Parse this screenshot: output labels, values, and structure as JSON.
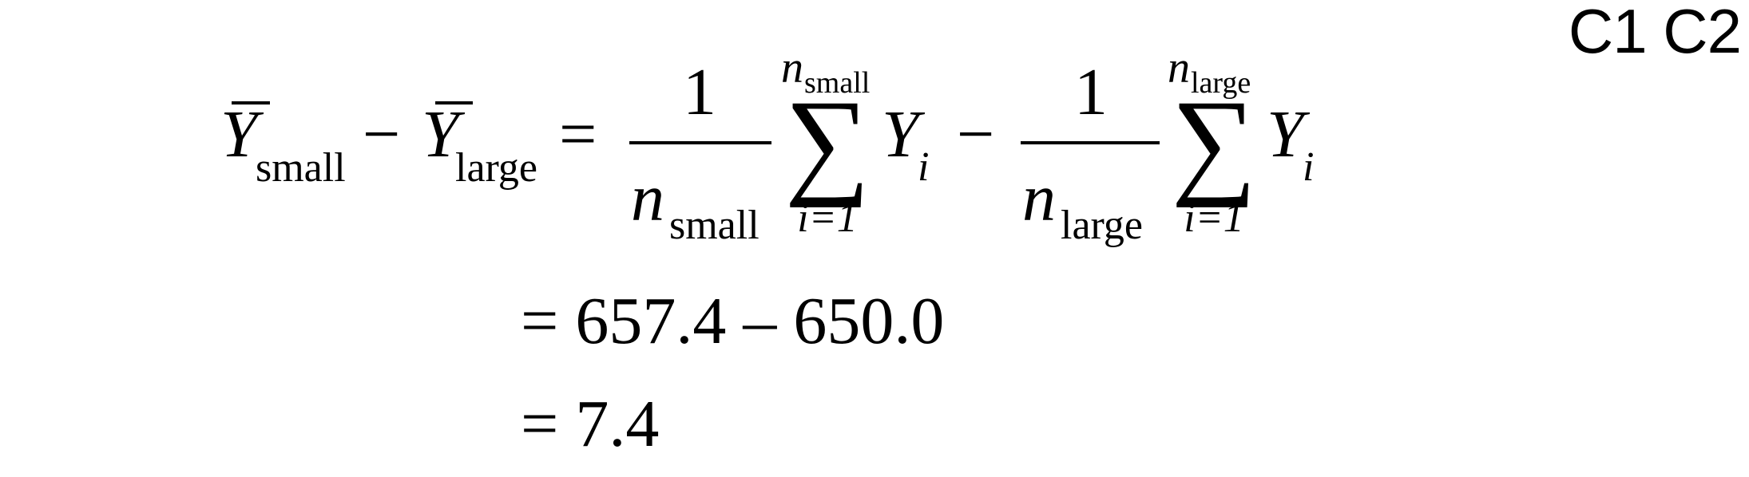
{
  "corner_label": "C1 C2",
  "equation": {
    "lhs": {
      "y_symbol": "Y",
      "sub_small": "small",
      "minus": "−",
      "sub_large": "large",
      "equals": "="
    },
    "term_small": {
      "numerator": "1",
      "denominator_symbol": "n",
      "denominator_sub": "small",
      "sum_symbol": "∑",
      "sum_upper_symbol": "n",
      "sum_upper_sub": "small",
      "sum_lower": "i=1",
      "summand_symbol": "Y",
      "summand_sub": "i"
    },
    "operator_minus": "−",
    "term_large": {
      "numerator": "1",
      "denominator_symbol": "n",
      "denominator_sub": "large",
      "sum_symbol": "∑",
      "sum_upper_symbol": "n",
      "sum_upper_sub": "large",
      "sum_lower": "i=1",
      "summand_symbol": "Y",
      "summand_sub": "i"
    },
    "line2": "= 657.4 – 650.0",
    "line3": "= 7.4"
  }
}
